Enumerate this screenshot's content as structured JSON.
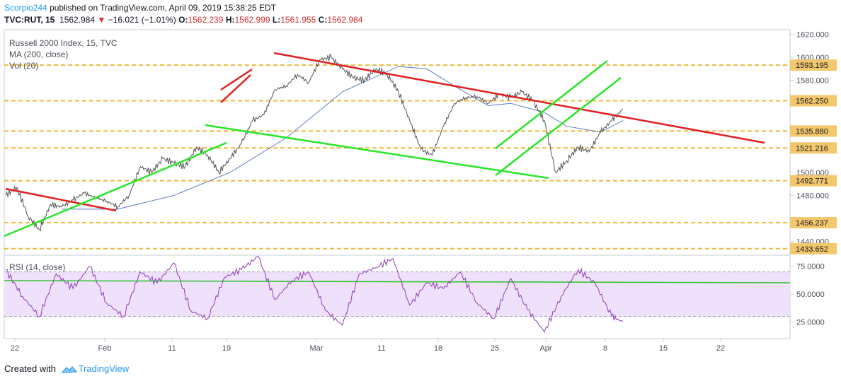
{
  "header": {
    "author": "Scorpio244",
    "published": "published on TradingView.com, April 09, 2019 15:38:25 EDT",
    "symbol": "TVC:RUT, 15",
    "last": "1562.984",
    "change": "−16.021 (−1.01%)",
    "open_label": "O:",
    "open": "1562.239",
    "high_label": "H:",
    "high": "1562.999",
    "low_label": "L:",
    "low": "1561.955",
    "close_label": "C:",
    "close": "1562.984"
  },
  "footer": {
    "created_with": "Created with",
    "brand": "TradingView"
  },
  "colors": {
    "price": "#555555",
    "ma": "#5b7cc4",
    "rsi": "#8e3fb5",
    "hline": "#f0b93a",
    "red": "#e02020",
    "green": "#27e627",
    "rsiband": "#efe0fb"
  },
  "chart_data": [
    {
      "type": "line",
      "title": "Russell 2000 Index, 15, TVC",
      "legend": [
        "MA (200, close)",
        "Vol (20)"
      ],
      "x_ticks": [
        "22",
        "Feb",
        "11",
        "19",
        "Mar",
        "11",
        "18",
        "25",
        "Apr",
        "8",
        "15",
        "22"
      ],
      "ylim": [
        1428,
        1624
      ],
      "y_ticks": [
        "1620.000",
        "1600.000",
        "1580.000",
        "1500.000",
        "1480.000",
        "1440.000"
      ],
      "series": [
        {
          "name": "Russell 2000 Index",
          "x": [
            0,
            2,
            4,
            6,
            8,
            10,
            12,
            14,
            16,
            18,
            20,
            22,
            24,
            26,
            28,
            30,
            32,
            34,
            36,
            38,
            40,
            42,
            44,
            46,
            48,
            50,
            52,
            54,
            56,
            58,
            60,
            62,
            64,
            66,
            68,
            70,
            72,
            74,
            76,
            78,
            80,
            82,
            84,
            86,
            88,
            90,
            92,
            94,
            96,
            98,
            100,
            102,
            104,
            106,
            108,
            110
          ],
          "y": [
            1480,
            1487,
            1462,
            1450,
            1472,
            1470,
            1476,
            1482,
            1478,
            1475,
            1470,
            1480,
            1505,
            1500,
            1512,
            1508,
            1505,
            1522,
            1515,
            1500,
            1512,
            1525,
            1545,
            1550,
            1572,
            1575,
            1585,
            1578,
            1598,
            1600,
            1590,
            1582,
            1580,
            1590,
            1585,
            1570,
            1545,
            1520,
            1515,
            1540,
            1560,
            1565,
            1566,
            1560,
            1568,
            1565,
            1570,
            1562,
            1545,
            1500,
            1510,
            1522,
            1518,
            1535,
            1545,
            1555
          ]
        },
        {
          "name": "MA (200, close)",
          "x": [
            10,
            20,
            30,
            40,
            50,
            60,
            70,
            75,
            80,
            86,
            90,
            96,
            100,
            106,
            110
          ],
          "y": [
            1468,
            1468,
            1480,
            1500,
            1530,
            1570,
            1592,
            1590,
            1575,
            1558,
            1560,
            1552,
            1540,
            1535,
            1545
          ]
        }
      ],
      "support_resistance_levels": [
        "1593.195",
        "1562.250",
        "1535.880",
        "1521.216",
        "1492.771",
        "1456.237",
        "1433.652"
      ]
    },
    {
      "type": "line",
      "title": "RSI (14, close)",
      "ylim": [
        10,
        85
      ],
      "y_ticks": [
        "75.0000",
        "50.0000",
        "25.0000"
      ],
      "band": [
        30,
        70
      ],
      "series": [
        {
          "name": "RSI (14, close)",
          "x": [
            0,
            3,
            6,
            9,
            12,
            15,
            18,
            21,
            24,
            27,
            30,
            33,
            36,
            39,
            42,
            45,
            48,
            51,
            54,
            57,
            60,
            63,
            66,
            69,
            72,
            75,
            78,
            81,
            84,
            87,
            90,
            93,
            96,
            99,
            102,
            105,
            108,
            110
          ],
          "y": [
            72,
            48,
            30,
            68,
            55,
            75,
            42,
            30,
            70,
            60,
            78,
            35,
            28,
            65,
            72,
            84,
            45,
            62,
            70,
            35,
            22,
            68,
            74,
            82,
            40,
            60,
            55,
            70,
            42,
            28,
            64,
            36,
            16,
            48,
            72,
            60,
            30,
            25
          ]
        }
      ]
    }
  ]
}
